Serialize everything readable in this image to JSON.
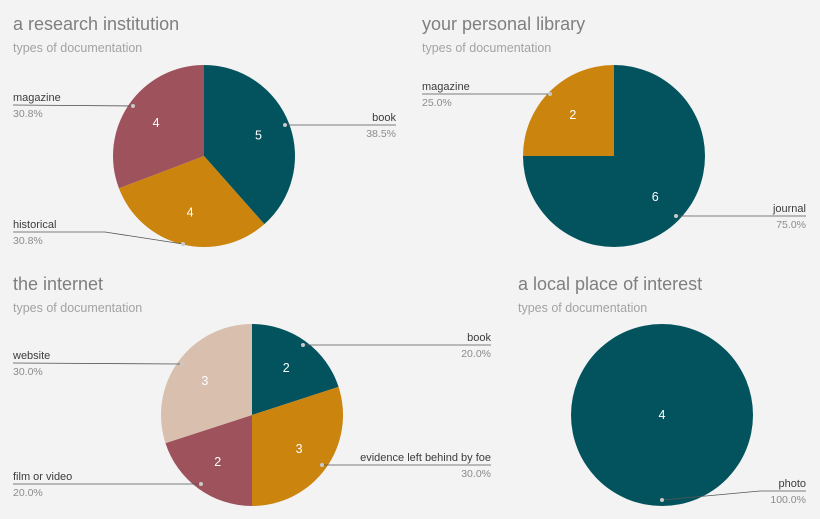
{
  "chart_data": [
    {
      "type": "pie",
      "title": "a research institution",
      "subtitle": "types of documentation",
      "slices": [
        {
          "label": "book",
          "value": 5,
          "percent": "38.5%",
          "color": "#02535d"
        },
        {
          "label": "historical",
          "value": 4,
          "percent": "30.8%",
          "color": "#cb840d"
        },
        {
          "label": "magazine",
          "value": 4,
          "percent": "30.8%",
          "color": "#9e535c"
        }
      ]
    },
    {
      "type": "pie",
      "title": "your personal library",
      "subtitle": "types of documentation",
      "slices": [
        {
          "label": "journal",
          "value": 6,
          "percent": "75.0%",
          "color": "#02535d"
        },
        {
          "label": "magazine",
          "value": 2,
          "percent": "25.0%",
          "color": "#cb840d"
        }
      ]
    },
    {
      "type": "pie",
      "title": "the internet",
      "subtitle": "types of documentation",
      "slices": [
        {
          "label": "book",
          "value": 2,
          "percent": "20.0%",
          "color": "#02535d"
        },
        {
          "label": "evidence left behind by foe",
          "value": 3,
          "percent": "30.0%",
          "color": "#cb840d"
        },
        {
          "label": "film or video",
          "value": 2,
          "percent": "20.0%",
          "color": "#9e535c"
        },
        {
          "label": "website",
          "value": 3,
          "percent": "30.0%",
          "color": "#d9bfae"
        }
      ]
    },
    {
      "type": "pie",
      "title": "a local place of interest",
      "subtitle": "types of documentation",
      "slices": [
        {
          "label": "photo",
          "value": 4,
          "percent": "100.0%",
          "color": "#02535d"
        }
      ]
    }
  ]
}
